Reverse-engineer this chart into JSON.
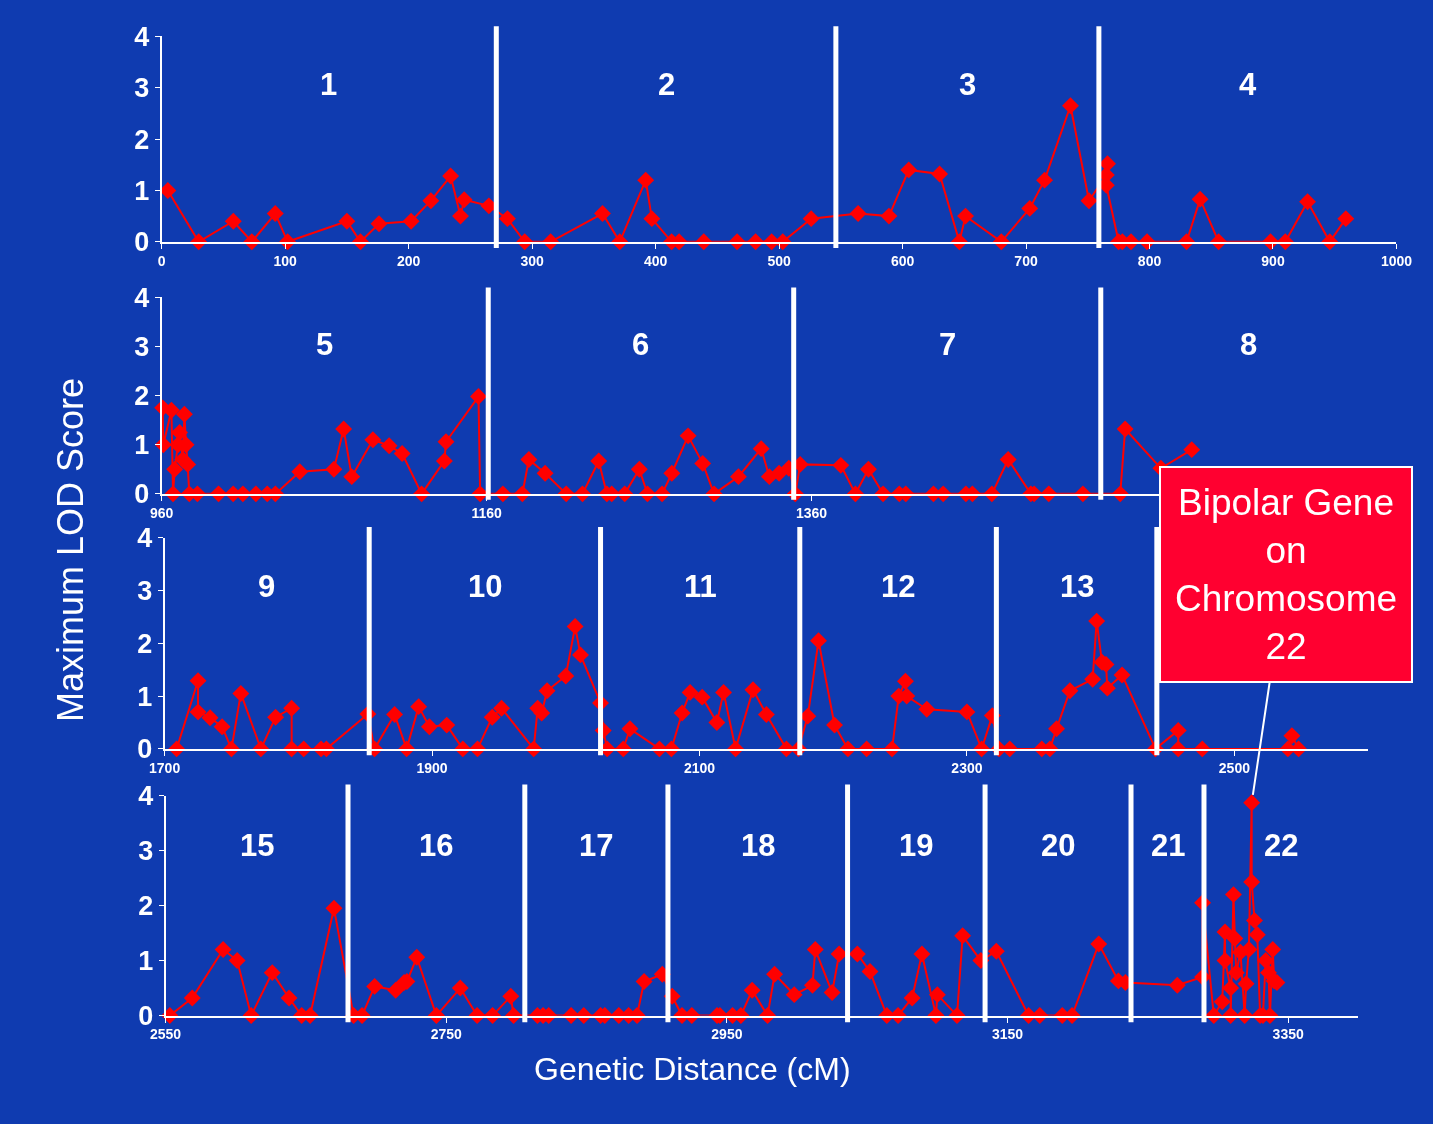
{
  "chart_data": [
    {
      "type": "line",
      "marker": "diamond",
      "line_style": "solid",
      "grid": false,
      "xlim": [
        0,
        1000
      ],
      "xticks": [
        0,
        100,
        200,
        300,
        400,
        500,
        600,
        700,
        800,
        900,
        1000
      ],
      "ylim": [
        0,
        4
      ],
      "yticks": [
        0,
        1,
        2,
        3,
        4
      ],
      "series": [
        {
          "color": "#ff0000",
          "x": [
            5,
            30,
            58,
            73,
            92,
            102,
            150,
            161,
            176,
            202,
            218,
            234,
            242,
            245,
            265,
            280,
            294,
            315,
            357,
            371,
            392,
            397,
            413,
            419,
            439,
            466,
            481,
            494,
            503,
            526,
            564,
            589,
            605,
            630,
            646,
            651,
            680,
            703,
            715,
            736,
            751,
            765,
            766,
            765,
            775,
            778,
            785,
            798,
            830,
            841,
            856,
            898,
            910,
            928,
            946,
            959
          ],
          "values": [
            1.0,
            0,
            0.4,
            0,
            0.55,
            0,
            0.4,
            0,
            0.35,
            0.4,
            0.8,
            1.28,
            0.5,
            0.82,
            0.7,
            0.45,
            0,
            0,
            0.55,
            0,
            1.2,
            0.45,
            0,
            0,
            0,
            0,
            0,
            0,
            0,
            0.45,
            0.55,
            0.5,
            1.4,
            1.32,
            0,
            0.5,
            0,
            0.65,
            1.2,
            2.65,
            0.8,
            1.3,
            1.52,
            1.1,
            0,
            0,
            0,
            0,
            0,
            0.83,
            0,
            0,
            0,
            0.78,
            0,
            0.45
          ]
        }
      ],
      "ref_lines": [
        {
          "axis": "x",
          "value": 271,
          "color": "#ffffff"
        },
        {
          "axis": "x",
          "value": 546,
          "color": "#ffffff"
        },
        {
          "axis": "x",
          "value": 759,
          "color": "#ffffff"
        }
      ],
      "annotations": [
        "1",
        "2",
        "3",
        "4"
      ]
    },
    {
      "type": "line",
      "marker": "diamond",
      "line_style": "solid",
      "grid": false,
      "ylabel": "Maximum LOD Score",
      "xlim": [
        960,
        1720
      ],
      "xticks": [
        960,
        1160,
        1360
      ],
      "ylim": [
        0,
        4
      ],
      "yticks": [
        0,
        1,
        2,
        3,
        4
      ],
      "series": [
        {
          "color": "#ff0000",
          "x": [
            960.6,
            961,
            966,
            967,
            968,
            970,
            971,
            973,
            974,
            975,
            976,
            977,
            982,
            995,
            1004,
            1010,
            1018,
            1025,
            1030,
            1045,
            1066,
            1072,
            1077,
            1090,
            1100,
            1108,
            1120,
            1134,
            1135,
            1155,
            1156,
            1170,
            1182,
            1186,
            1196,
            1209,
            1219,
            1229,
            1234,
            1237,
            1245,
            1254,
            1259,
            1268,
            1274,
            1284,
            1293,
            1300,
            1315,
            1329,
            1334,
            1340,
            1346,
            1350,
            1353,
            1378,
            1387,
            1395,
            1404,
            1414,
            1418,
            1435,
            1441,
            1455,
            1459,
            1471,
            1481,
            1495,
            1497,
            1506,
            1527,
            1550,
            1553,
            1575,
            1594
          ],
          "values": [
            1.75,
            1.0,
            1.7,
            0,
            0.5,
            1.0,
            1.25,
            0.7,
            1.62,
            1.0,
            0.6,
            0,
            0,
            0,
            0,
            0,
            0,
            0,
            0,
            0.45,
            0.5,
            1.32,
            0.35,
            1.1,
            0.98,
            0.82,
            0,
            0.67,
            1.06,
            1.98,
            0,
            0,
            0,
            0.7,
            0.42,
            0,
            0,
            0.67,
            0,
            0,
            0,
            0.5,
            0,
            0,
            0.42,
            1.18,
            0.62,
            0,
            0.35,
            0.92,
            0.35,
            0.42,
            0.52,
            0,
            0.6,
            0.58,
            0,
            0.5,
            0,
            0,
            0,
            0,
            0,
            0,
            0,
            0,
            0.7,
            0,
            0,
            0,
            0,
            0,
            1.32,
            0.52,
            0.9
          ]
        }
      ],
      "ref_lines": [
        {
          "axis": "x",
          "value": 1161,
          "color": "#ffffff"
        },
        {
          "axis": "x",
          "value": 1349,
          "color": "#ffffff"
        },
        {
          "axis": "x",
          "value": 1538,
          "color": "#ffffff"
        }
      ],
      "annotations": [
        "5",
        "6",
        "7",
        "8"
      ]
    },
    {
      "type": "line",
      "marker": "diamond",
      "line_style": "solid",
      "grid": false,
      "xlim": [
        1700,
        2600
      ],
      "xticks": [
        1700,
        1900,
        2100,
        2300,
        2500
      ],
      "ylim": [
        0,
        4
      ],
      "yticks": [
        0,
        1,
        2,
        3,
        4
      ],
      "series": [
        {
          "color": "#ff0000",
          "x": [
            1709,
            1725,
            1725,
            1734,
            1743,
            1750,
            1757,
            1772,
            1783,
            1795,
            1795,
            1804,
            1817,
            1821,
            1852,
            1857,
            1872,
            1881,
            1890,
            1898,
            1911,
            1923,
            1934,
            1945,
            1952,
            1976,
            1979,
            1982,
            1986,
            2000,
            2007,
            2011,
            2026,
            2028,
            2031,
            2043,
            2048,
            2070,
            2079,
            2087,
            2093,
            2102,
            2113,
            2118,
            2127,
            2140,
            2150,
            2165,
            2174,
            2181,
            2189,
            2201,
            2211,
            2225,
            2244,
            2249,
            2254,
            2255,
            2270,
            2300,
            2311,
            2319,
            2324,
            2332,
            2356,
            2362,
            2367,
            2377,
            2394,
            2397,
            2401,
            2404,
            2405,
            2416,
            2441,
            2458,
            2458,
            2476,
            2540,
            2543,
            2548
          ],
          "values": [
            0,
            1.29,
            0.7,
            0.59,
            0.42,
            0,
            1.05,
            0,
            0.6,
            0.77,
            0,
            0,
            0,
            0,
            0.66,
            0,
            0.65,
            0,
            0.8,
            0.42,
            0.45,
            0,
            0,
            0.6,
            0.77,
            0,
            0.77,
            0.68,
            1.1,
            1.38,
            2.32,
            1.78,
            0.87,
            0.35,
            0,
            0,
            0.38,
            0,
            0,
            0.68,
            1.07,
            0.98,
            0.5,
            1.07,
            0,
            1.12,
            0.65,
            0,
            0,
            0.62,
            2.05,
            0.45,
            0,
            0,
            0,
            1.0,
            1.28,
            1.0,
            0.75,
            0.7,
            0,
            0.63,
            0,
            0,
            0,
            0,
            0.38,
            1.1,
            1.32,
            2.42,
            1.64,
            1.6,
            1.15,
            1.4,
            0,
            0.35,
            0,
            0,
            0,
            0.25,
            0
          ]
        }
      ],
      "ref_lines": [
        {
          "axis": "x",
          "value": 1853,
          "color": "#ffffff"
        },
        {
          "axis": "x",
          "value": 2026,
          "color": "#ffffff"
        },
        {
          "axis": "x",
          "value": 2175,
          "color": "#ffffff"
        },
        {
          "axis": "x",
          "value": 2322,
          "color": "#ffffff"
        },
        {
          "axis": "x",
          "value": 2442,
          "color": "#ffffff"
        }
      ],
      "annotations": [
        "9",
        "10",
        "11",
        "12",
        "13"
      ]
    },
    {
      "type": "line",
      "marker": "diamond",
      "line_style": "solid",
      "grid": false,
      "xlabel": "Genetic Distance (cM)",
      "xlim": [
        2550,
        3400
      ],
      "xticks": [
        2550,
        2750,
        2950,
        3150,
        3350
      ],
      "ylim": [
        0,
        4
      ],
      "yticks": [
        0,
        1,
        2,
        3,
        4
      ],
      "series": [
        {
          "color": "#ff0000",
          "x": [
            2553,
            2569,
            2591,
            2601,
            2611,
            2626,
            2638,
            2647,
            2653,
            2670,
            2684,
            2690,
            2699,
            2714,
            2720,
            2722,
            2729,
            2743,
            2760,
            2772,
            2783,
            2796,
            2798,
            2815,
            2819,
            2823,
            2839,
            2848,
            2860,
            2863,
            2873,
            2880,
            2886,
            2891,
            2904,
            2911,
            2918,
            2925,
            2943,
            2945,
            2954,
            2960,
            2968,
            2979,
            2984,
            2998,
            3011,
            3013,
            3025,
            3030,
            3043,
            3052,
            3064,
            3072,
            3082,
            3089,
            3099,
            3100,
            3114,
            3118,
            3131,
            3142,
            3165,
            3173,
            3189,
            3196,
            3215,
            3229,
            3234,
            3271,
            3289,
            3289,
            3297,
            3303,
            3305,
            3305,
            3309,
            3309,
            3311,
            3312,
            3313,
            3316,
            3319,
            3320,
            3322,
            3324,
            3324,
            3326,
            3328,
            3330,
            3332,
            3334,
            3336,
            3337,
            3339,
            3340,
            3342
          ],
          "values": [
            0,
            0.32,
            1.2,
            1.0,
            0,
            0.78,
            0.32,
            0,
            0,
            1.95,
            0,
            0,
            0.53,
            0.46,
            0.6,
            0.62,
            1.06,
            0,
            0.5,
            0,
            0,
            0.35,
            0,
            0,
            0,
            0,
            0,
            0,
            0,
            0,
            0,
            0,
            0,
            0.62,
            0.75,
            0.35,
            0,
            0,
            0,
            0,
            0,
            0,
            0.46,
            0,
            0.75,
            0.38,
            0.55,
            1.2,
            0.42,
            1.12,
            1.12,
            0.8,
            0,
            0,
            0.32,
            1.12,
            0,
            0.38,
            0,
            1.45,
            1.0,
            1.17,
            0,
            0,
            0,
            0,
            1.3,
            0.63,
            0.6,
            0.55,
            0.7,
            2.05,
            0,
            0.25,
            1.52,
            1.0,
            0.5,
            0,
            2.2,
            1.4,
            0.78,
            1.15,
            0,
            0.58,
            1.2,
            3.87,
            2.43,
            1.73,
            1.47,
            0,
            0,
            1.0,
            0.78,
            0,
            1.2,
            0.63,
            0.6
          ]
        }
      ],
      "ref_lines": [
        {
          "axis": "x",
          "value": 2680,
          "color": "#ffffff"
        },
        {
          "axis": "x",
          "value": 2806,
          "color": "#ffffff"
        },
        {
          "axis": "x",
          "value": 2908,
          "color": "#ffffff"
        },
        {
          "axis": "x",
          "value": 3036,
          "color": "#ffffff"
        },
        {
          "axis": "x",
          "value": 3134,
          "color": "#ffffff"
        },
        {
          "axis": "x",
          "value": 3238,
          "color": "#ffffff"
        },
        {
          "axis": "x",
          "value": 3290,
          "color": "#ffffff"
        }
      ],
      "annotations": [
        "15",
        "16",
        "17",
        "18",
        "19",
        "20",
        "21",
        "22",
        {
          "text": "Bipolar Gene\non\nChromosome\n22",
          "x": 3324,
          "y": 3.87
        }
      ]
    }
  ]
}
